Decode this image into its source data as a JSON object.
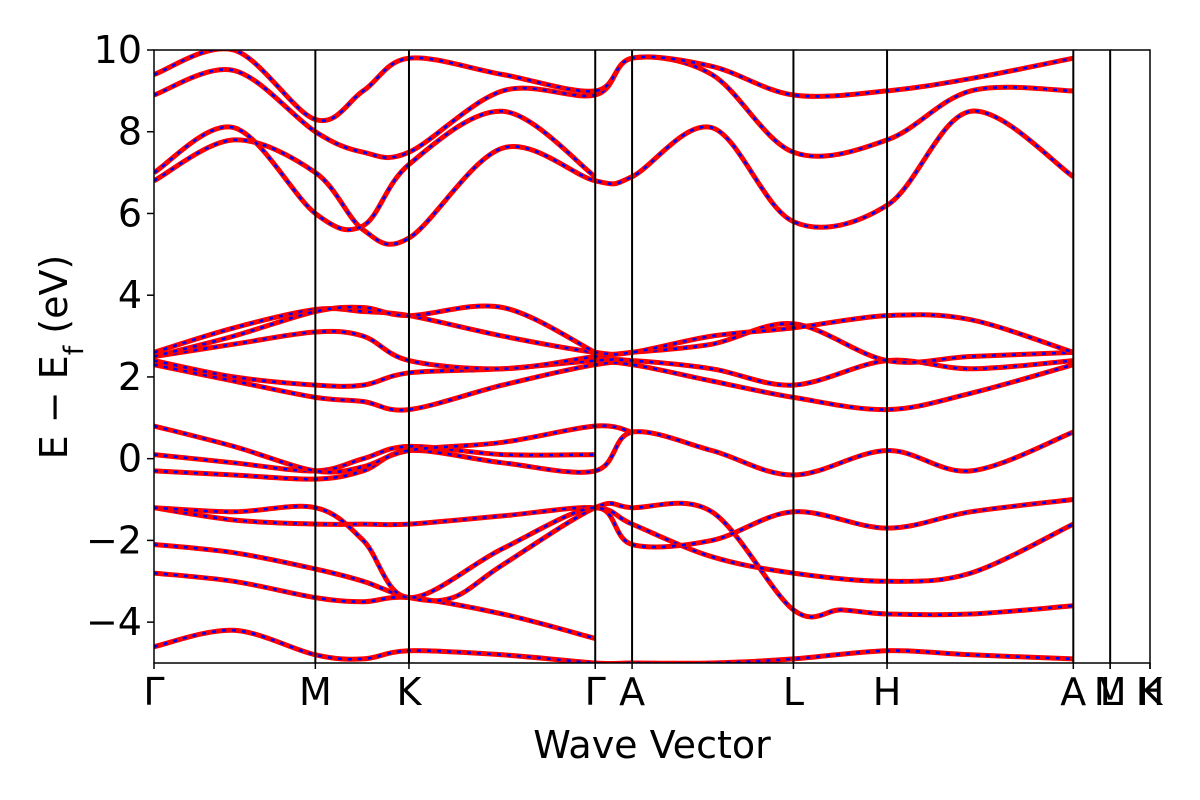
{
  "chart_data": {
    "type": "line",
    "xlabel": "Wave Vector",
    "ylabel": "E − E_f (eV)",
    "ylabel_main": "E − E",
    "ylabel_sub": "f",
    "ylabel_unit": " (eV)",
    "ylim": [
      -5,
      10
    ],
    "y_ticks": [
      -4,
      -2,
      0,
      2,
      4,
      6,
      8,
      10
    ],
    "y_tick_labels": [
      "−4",
      "−2",
      "0",
      "2",
      "4",
      "6",
      "8",
      "10"
    ],
    "x_range": [
      0,
      1
    ],
    "k_points": [
      {
        "label": "Γ",
        "x": 0.0
      },
      {
        "label": "M",
        "x": 0.162
      },
      {
        "label": "K",
        "x": 0.256
      },
      {
        "label": "Γ",
        "x": 0.443
      },
      {
        "label": "A",
        "x": 0.48
      },
      {
        "label": "L",
        "x": 0.642
      },
      {
        "label": "H",
        "x": 0.736
      },
      {
        "label": "A",
        "x": 0.923
      },
      {
        "label": "L",
        "x": 0.96
      },
      {
        "label": "M",
        "x": 0.96
      },
      {
        "label": "H",
        "x": 1.0
      },
      {
        "label": "K",
        "x": 1.0
      }
    ],
    "grid": false,
    "series_style": [
      {
        "color": "#ff0000",
        "style": "solid"
      },
      {
        "color": "#0000ff",
        "style": "dashed"
      }
    ],
    "bands": [
      {
        "x": [
          0.0,
          0.08,
          0.162,
          0.21,
          0.256,
          0.35,
          0.443,
          0.48,
          0.56,
          0.642,
          0.736,
          0.82,
          0.923
        ],
        "y": [
          -4.6,
          -4.2,
          -4.8,
          -4.9,
          -4.7,
          -4.8,
          -5.0,
          -5.0,
          -5.0,
          -4.9,
          -4.7,
          -4.8,
          -4.9
        ]
      },
      {
        "x": [
          0.0,
          0.08,
          0.162,
          0.21,
          0.256,
          0.35,
          0.443
        ],
        "y": [
          -2.8,
          -3.0,
          -3.4,
          -3.5,
          -3.4,
          -3.8,
          -4.4
        ]
      },
      {
        "x": [
          0.0,
          0.08,
          0.162,
          0.21,
          0.256,
          0.3,
          0.35,
          0.443,
          0.48,
          0.56,
          0.642,
          0.69,
          0.736,
          0.82,
          0.923
        ],
        "y": [
          -2.1,
          -2.3,
          -2.7,
          -3.0,
          -3.4,
          -3.4,
          -2.6,
          -1.2,
          -1.2,
          -1.3,
          -3.7,
          -3.7,
          -3.8,
          -3.8,
          -3.6
        ]
      },
      {
        "x": [
          0.0,
          0.08,
          0.162,
          0.21,
          0.256,
          0.35,
          0.443,
          0.48,
          0.56,
          0.642,
          0.736,
          0.82,
          0.923
        ],
        "y": [
          -1.2,
          -1.5,
          -1.6,
          -1.6,
          -1.6,
          -1.4,
          -1.2,
          -1.6,
          -2.4,
          -2.8,
          -3.0,
          -2.8,
          -1.6
        ]
      },
      {
        "x": [
          0.0,
          0.08,
          0.162,
          0.21,
          0.256,
          0.35,
          0.443,
          0.48,
          0.56,
          0.642,
          0.736,
          0.82,
          0.923
        ],
        "y": [
          -1.2,
          -1.3,
          -1.2,
          -2.0,
          -3.4,
          -2.2,
          -1.2,
          -2.1,
          -2.0,
          -1.3,
          -1.7,
          -1.3,
          -1.0
        ]
      },
      {
        "x": [
          0.0,
          0.08,
          0.162,
          0.21,
          0.256,
          0.35,
          0.443,
          0.48,
          0.56,
          0.642,
          0.736,
          0.82,
          0.923
        ],
        "y": [
          -0.3,
          -0.4,
          -0.5,
          -0.3,
          0.2,
          -0.1,
          -0.3,
          0.65,
          0.2,
          -0.4,
          0.2,
          -0.3,
          0.65
        ]
      },
      {
        "x": [
          0.0,
          0.08,
          0.162,
          0.21,
          0.256,
          0.35,
          0.443
        ],
        "y": [
          0.1,
          -0.1,
          -0.3,
          0.0,
          0.3,
          0.1,
          0.1
        ]
      },
      {
        "x": [
          0.0,
          0.08,
          0.162,
          0.21,
          0.256,
          0.35,
          0.443,
          0.48
        ],
        "y": [
          0.8,
          0.3,
          -0.3,
          -0.2,
          0.2,
          0.4,
          0.8,
          0.65
        ]
      },
      {
        "x": [
          0.0,
          0.08,
          0.162,
          0.21,
          0.256,
          0.35,
          0.443,
          0.48,
          0.56,
          0.642,
          0.736,
          0.82,
          0.923
        ],
        "y": [
          2.3,
          1.9,
          1.5,
          1.4,
          1.2,
          1.8,
          2.3,
          2.3,
          1.9,
          1.5,
          1.2,
          1.6,
          2.3
        ]
      },
      {
        "x": [
          0.0,
          0.08,
          0.162,
          0.21,
          0.256,
          0.35,
          0.443,
          0.48,
          0.56,
          0.642,
          0.736,
          0.82,
          0.923
        ],
        "y": [
          2.4,
          2.0,
          1.8,
          1.8,
          2.1,
          2.2,
          2.4,
          2.4,
          2.2,
          1.8,
          2.4,
          2.2,
          2.4
        ]
      },
      {
        "x": [
          0.0,
          0.08,
          0.162,
          0.21,
          0.256,
          0.35,
          0.443,
          0.48,
          0.56,
          0.642,
          0.736,
          0.82,
          0.923
        ],
        "y": [
          2.5,
          2.8,
          3.1,
          3.0,
          2.4,
          2.2,
          2.5,
          2.6,
          2.8,
          3.3,
          2.4,
          2.5,
          2.6
        ]
      },
      {
        "x": [
          0.0,
          0.08,
          0.162,
          0.21,
          0.256,
          0.35,
          0.443,
          0.48,
          0.56,
          0.642,
          0.736,
          0.82,
          0.923
        ],
        "y": [
          2.6,
          3.2,
          3.65,
          3.6,
          3.5,
          3.0,
          2.6,
          2.6,
          3.0,
          3.2,
          3.5,
          3.4,
          2.6
        ]
      },
      {
        "x": [
          0.0,
          0.08,
          0.162,
          0.21,
          0.256,
          0.35,
          0.443
        ],
        "y": [
          2.5,
          3.0,
          3.6,
          3.7,
          3.5,
          3.7,
          2.6
        ]
      },
      {
        "x": [
          0.0,
          0.08,
          0.162,
          0.21,
          0.256,
          0.35,
          0.443,
          0.48,
          0.56,
          0.642,
          0.736,
          0.82,
          0.923
        ],
        "y": [
          6.8,
          7.8,
          7.0,
          5.6,
          5.4,
          7.6,
          6.8,
          6.9,
          8.1,
          5.8,
          6.2,
          8.5,
          6.9
        ]
      },
      {
        "x": [
          0.0,
          0.08,
          0.162,
          0.21,
          0.256,
          0.35,
          0.443
        ],
        "y": [
          7.0,
          8.1,
          6.0,
          5.7,
          7.2,
          8.5,
          6.9
        ]
      },
      {
        "x": [
          0.0,
          0.08,
          0.162,
          0.21,
          0.256,
          0.35,
          0.443,
          0.48,
          0.56,
          0.642,
          0.736,
          0.82,
          0.923
        ],
        "y": [
          8.9,
          9.5,
          8.0,
          7.5,
          7.5,
          9.0,
          8.9,
          9.8,
          9.4,
          7.5,
          7.8,
          9.0,
          9.0
        ]
      },
      {
        "x": [
          0.0,
          0.08,
          0.162,
          0.21,
          0.256,
          0.35,
          0.443,
          0.48,
          0.56,
          0.642,
          0.736,
          0.82,
          0.923
        ],
        "y": [
          9.4,
          10.0,
          8.3,
          9.0,
          9.8,
          9.4,
          9.0,
          9.8,
          9.6,
          8.9,
          9.0,
          9.3,
          9.8
        ]
      }
    ]
  }
}
